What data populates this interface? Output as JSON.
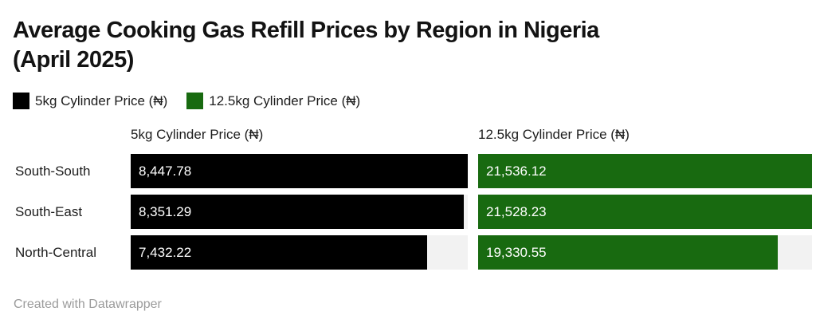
{
  "title": {
    "line1": "Average Cooking Gas Refill Prices by Region in Nigeria",
    "line2": "(April 2025)"
  },
  "legend": [
    {
      "label": "5kg Cylinder Price (₦)",
      "color": "#000000"
    },
    {
      "label": "12.5kg Cylinder Price (₦)",
      "color": "#186a10"
    }
  ],
  "footer": "Created with Datawrapper",
  "chart_data": {
    "type": "bar",
    "orientation": "horizontal",
    "layout": "split-columns",
    "legend_position": "top",
    "grid": false,
    "track_color": "#f2f2f2",
    "categories": [
      "South-South",
      "South-East",
      "North-Central"
    ],
    "series": [
      {
        "name": "5kg Cylinder Price (₦)",
        "color": "#000000",
        "values": [
          8447.78,
          8351.29,
          7432.22
        ],
        "value_labels": [
          "8,447.78",
          "8,351.29",
          "7,432.22"
        ],
        "axis_max": 8447.78
      },
      {
        "name": "12.5kg Cylinder Price (₦)",
        "color": "#186a10",
        "values": [
          21536.12,
          21528.23,
          19330.55
        ],
        "value_labels": [
          "21,536.12",
          "21,528.23",
          "19,330.55"
        ],
        "axis_max": 21536.12
      }
    ]
  }
}
